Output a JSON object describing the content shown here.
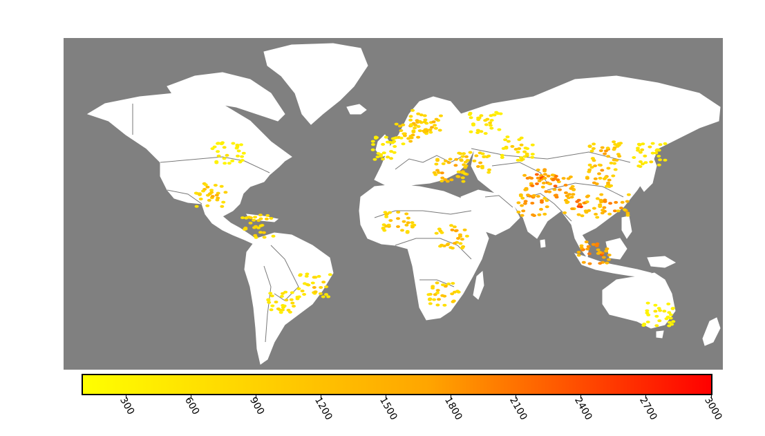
{
  "map": {
    "ocean_color": "#808080",
    "land_color": "#ffffff",
    "border_color": "#777777",
    "projection": "equirectangular",
    "lon_range": [
      -180,
      180
    ],
    "lat_range": [
      -60,
      90
    ]
  },
  "colorbar": {
    "colormap": "autumn_r",
    "color_low": "#ffff00",
    "color_high": "#ff0000",
    "vmin": 100,
    "vmax": 3000,
    "ticks": [
      "300",
      "600",
      "900",
      "1200",
      "1500",
      "1800",
      "2100",
      "2400",
      "2700",
      "3000"
    ],
    "tick_values": [
      300,
      600,
      900,
      1200,
      1500,
      1800,
      2100,
      2400,
      2700,
      3000
    ]
  },
  "chart_data": {
    "type": "heatmap",
    "title": "",
    "xlabel": "",
    "ylabel": "",
    "value_range": [
      100,
      3000
    ],
    "hotspots": [
      {
        "lon": 80,
        "lat": 26,
        "value": 2800
      },
      {
        "lon": 77,
        "lat": 14,
        "value": 2400
      },
      {
        "lon": 90,
        "lat": 23,
        "value": 2700
      },
      {
        "lon": 110,
        "lat": -7,
        "value": 2800
      },
      {
        "lon": 102,
        "lat": 14,
        "value": 2500
      },
      {
        "lon": 120,
        "lat": 14,
        "value": 2200
      },
      {
        "lon": 113,
        "lat": 28,
        "value": 1800
      },
      {
        "lon": 116,
        "lat": 38,
        "value": 1600
      },
      {
        "lon": 10,
        "lat": 48,
        "value": 1500
      },
      {
        "lon": 18,
        "lat": 52,
        "value": 1400
      },
      {
        "lon": 31,
        "lat": 30,
        "value": 1800
      },
      {
        "lon": 32,
        "lat": 0,
        "value": 1600
      },
      {
        "lon": 3,
        "lat": 7,
        "value": 1400
      },
      {
        "lon": 44,
        "lat": 33,
        "value": 1500
      },
      {
        "lon": -99,
        "lat": 19,
        "value": 1300
      },
      {
        "lon": -74,
        "lat": 5,
        "value": 1100
      },
      {
        "lon": -43,
        "lat": -22,
        "value": 1000
      },
      {
        "lon": -60,
        "lat": -30,
        "value": 800
      },
      {
        "lon": -90,
        "lat": 38,
        "value": 500
      },
      {
        "lon": -3,
        "lat": 40,
        "value": 700
      },
      {
        "lon": 28,
        "lat": -26,
        "value": 1300
      },
      {
        "lon": 140,
        "lat": 37,
        "value": 800
      },
      {
        "lon": 145,
        "lat": -35,
        "value": 500
      },
      {
        "lon": 68,
        "lat": 40,
        "value": 900
      },
      {
        "lon": 50,
        "lat": 52,
        "value": 700
      }
    ]
  }
}
